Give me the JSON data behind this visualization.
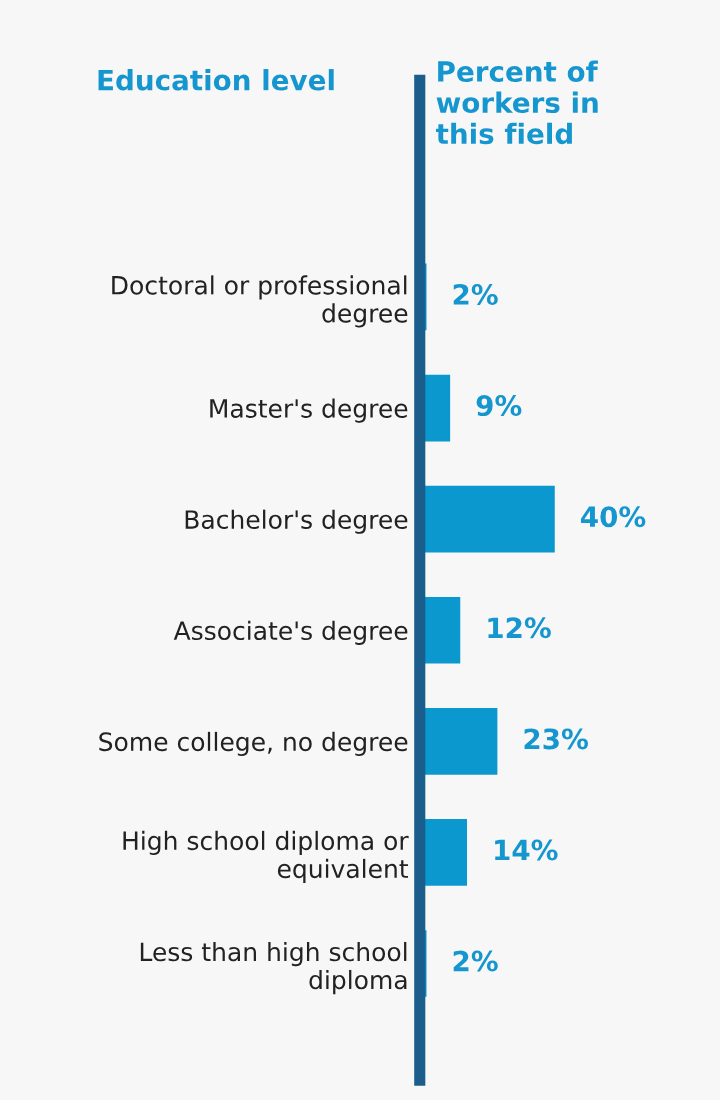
{
  "chart_data": {
    "type": "bar",
    "orientation": "horizontal",
    "annotations": [
      "Education level"
    ],
    "xlabel": "Percent of\nworkers in\nthis field",
    "categories": [
      "Doctoral or professional\ndegree",
      "Master's degree",
      "Bachelor's degree",
      "Associate's degree",
      "Some college, no degree",
      "High school diploma or\nequivalent",
      "Less than high school\ndiploma"
    ],
    "values": [
      2,
      9,
      40,
      12,
      23,
      14,
      2
    ],
    "value_labels": [
      "2%",
      "9%",
      "40%",
      "12%",
      "23%",
      "14%",
      "2%"
    ],
    "color": "#0a98cf",
    "grid": false
  }
}
